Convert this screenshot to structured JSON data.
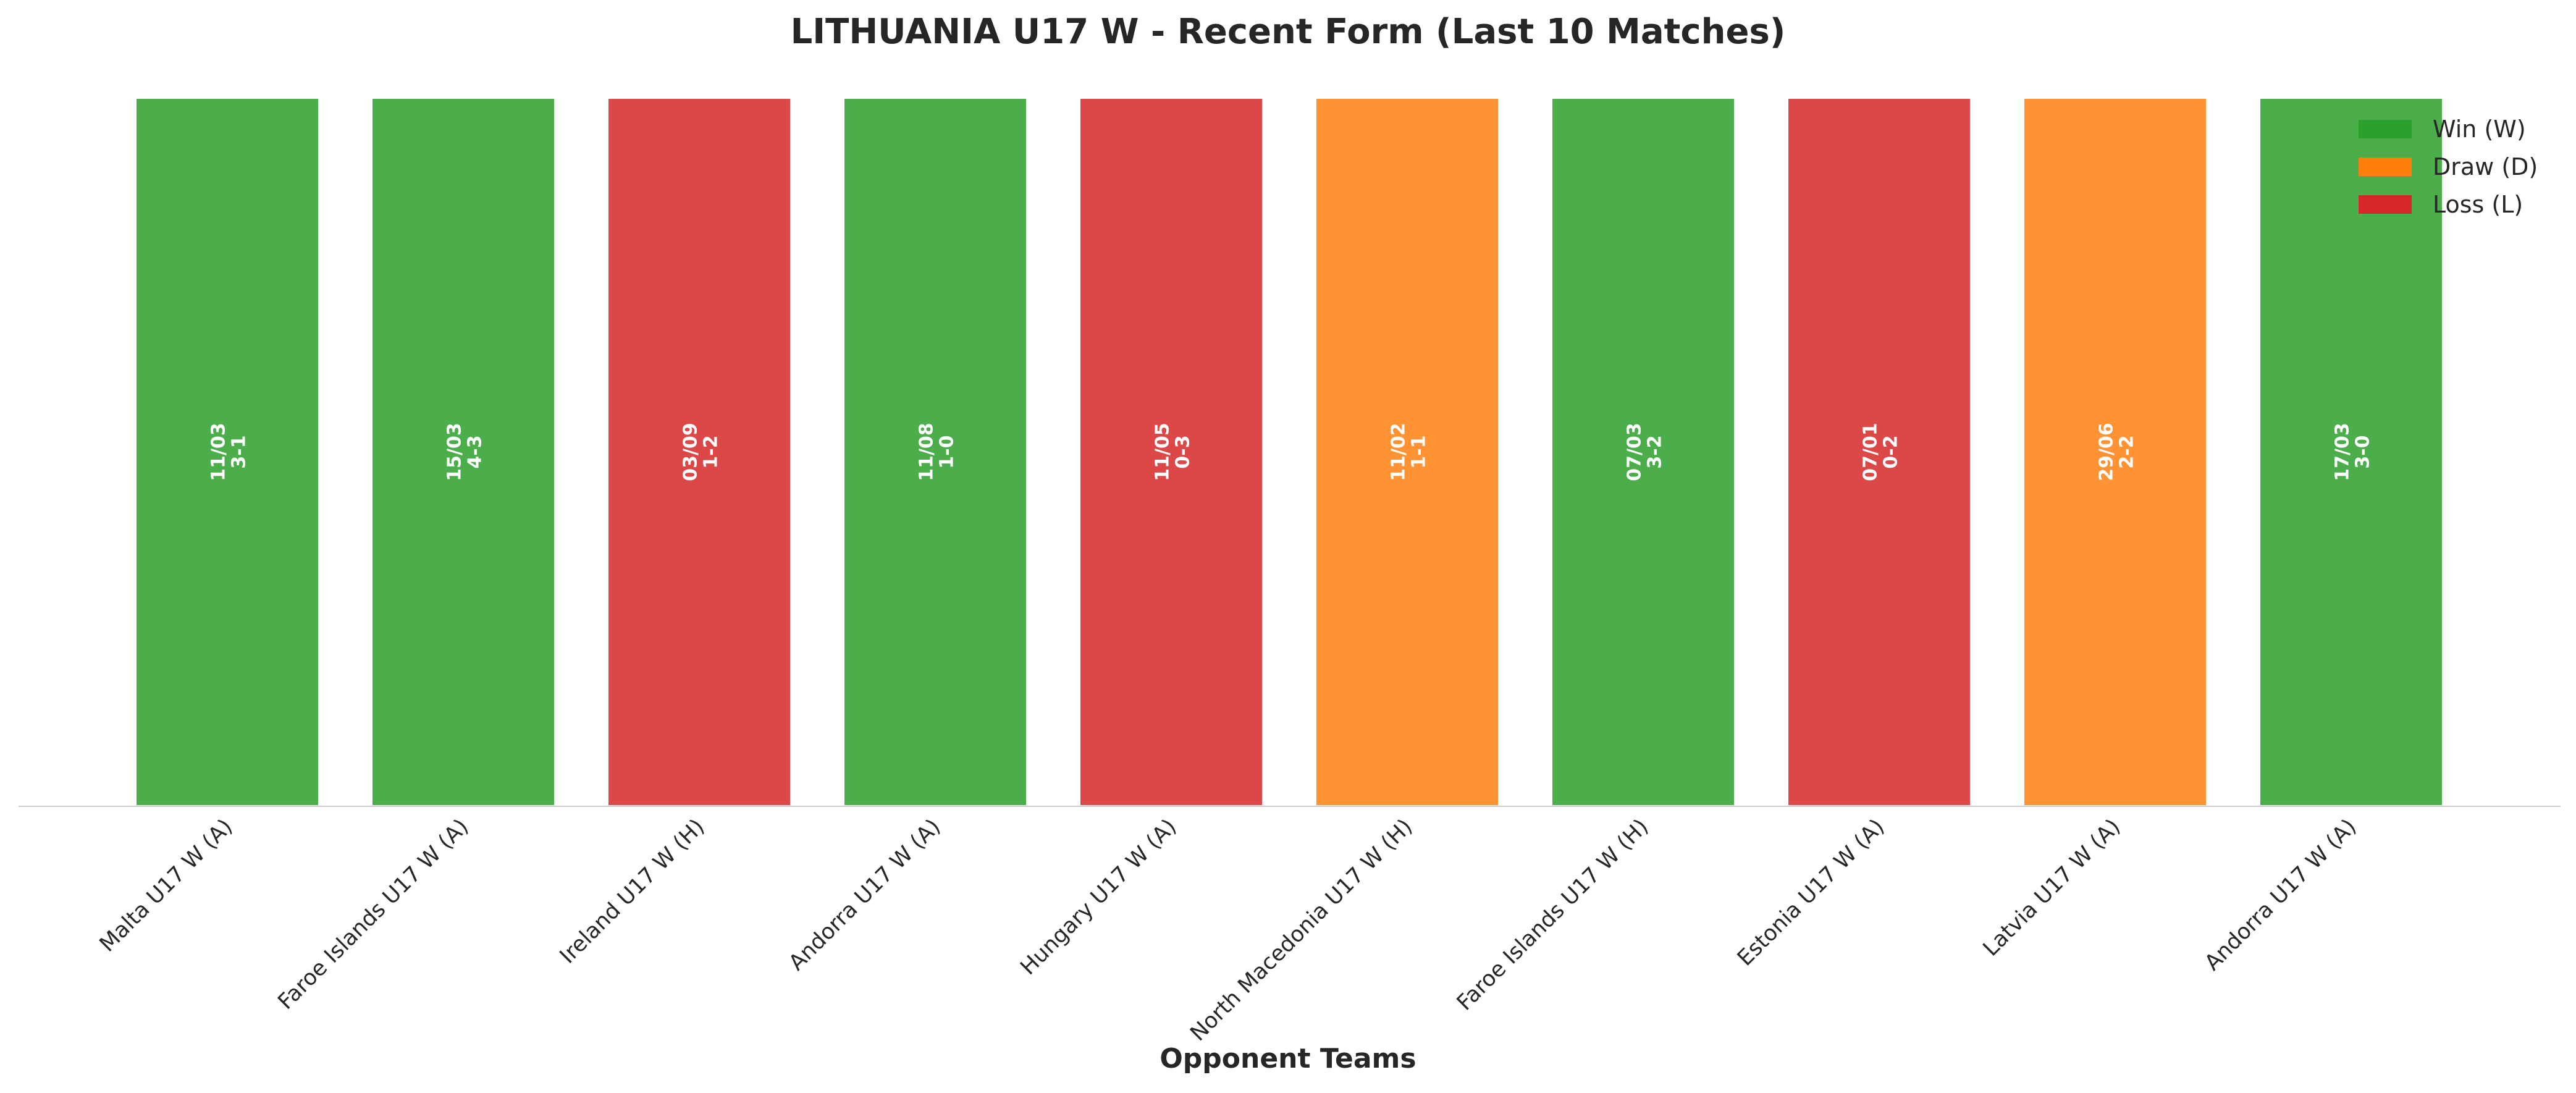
{
  "chart_data": {
    "type": "bar",
    "title": "LITHUANIA U17 W - Recent Form (Last 10 Matches)",
    "xlabel": "Opponent Teams",
    "ylabel": "",
    "categories": [
      "Malta U17 W (A)",
      "Faroe Islands U17 W (A)",
      "Ireland U17 W (H)",
      "Andorra U17 W (A)",
      "Hungary U17 W (A)",
      "North Macedonia U17 W (H)",
      "Faroe Islands U17 W (H)",
      "Estonia U17 W (A)",
      "Latvia U17 W (A)",
      "Andorra U17 W (A)"
    ],
    "values": [
      1,
      1,
      1,
      1,
      1,
      1,
      1,
      1,
      1,
      1
    ],
    "results": [
      "W",
      "W",
      "L",
      "W",
      "L",
      "D",
      "W",
      "L",
      "D",
      "W"
    ],
    "dates": [
      "11/03",
      "15/03",
      "03/09",
      "11/08",
      "11/05",
      "11/02",
      "07/03",
      "07/01",
      "29/06",
      "17/03"
    ],
    "scores": [
      "3-1",
      "4-3",
      "1-2",
      "1-0",
      "0-3",
      "1-1",
      "3-2",
      "0-2",
      "2-2",
      "3-0"
    ],
    "ylim": [
      0,
      1
    ],
    "grid": false,
    "legend_position": "top-right",
    "legend": [
      {
        "key": "W",
        "label": "Win (W)",
        "color": "#2ca02c"
      },
      {
        "key": "D",
        "label": "Draw (D)",
        "color": "#ff7f0e"
      },
      {
        "key": "L",
        "label": "Loss (L)",
        "color": "#d62728"
      }
    ]
  }
}
